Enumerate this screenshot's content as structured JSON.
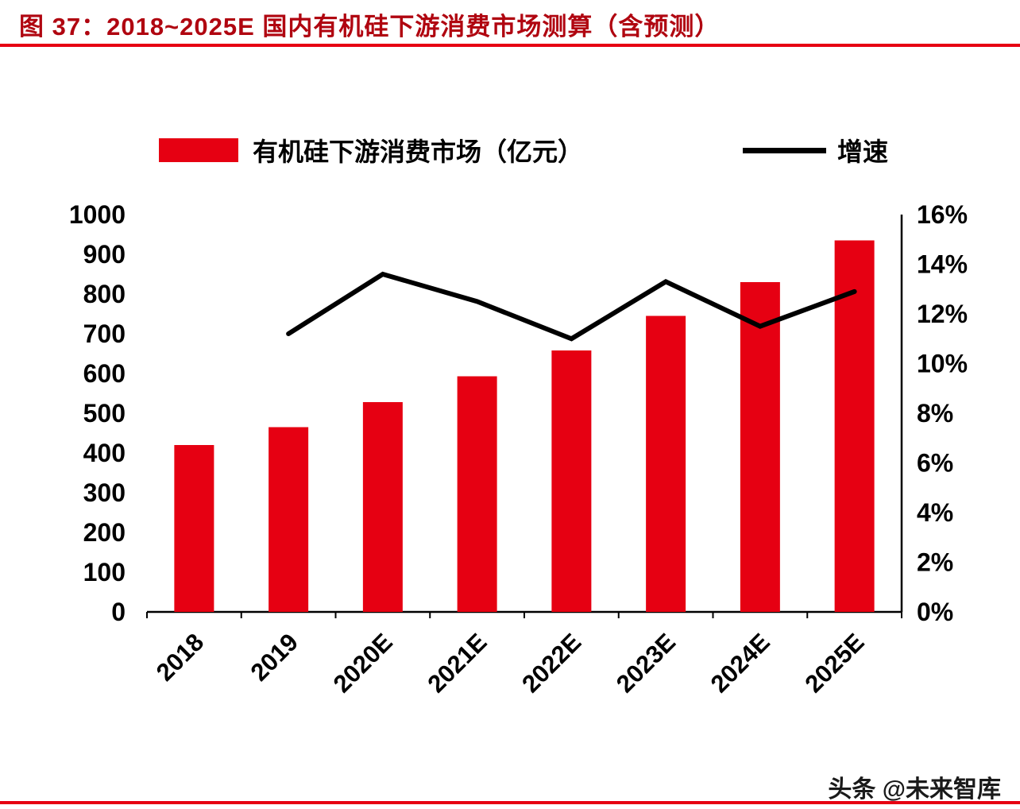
{
  "header": {
    "title": "图 37：2018~2025E 国内有机硅下游消费市场测算（含预测）",
    "title_color": "#b00510",
    "rule_color": "#e60012"
  },
  "legend": {
    "bar_label": "有机硅下游消费市场（亿元）",
    "line_label": "增速"
  },
  "footer": {
    "credit": "头条 @未来智库"
  },
  "chart_data": {
    "type": "bar+line",
    "title": "2018~2025E 国内有机硅下游消费市场测算（含预测）",
    "categories": [
      "2018",
      "2019",
      "2020E",
      "2021E",
      "2022E",
      "2023E",
      "2024E",
      "2025E"
    ],
    "series": [
      {
        "name": "有机硅下游消费市场（亿元）",
        "type": "bar",
        "axis": "left",
        "color": "#e60012",
        "values": [
          420,
          465,
          528,
          593,
          658,
          745,
          830,
          935
        ]
      },
      {
        "name": "增速",
        "type": "line",
        "axis": "right",
        "color": "#000000",
        "values": [
          null,
          11.2,
          13.6,
          12.5,
          11.0,
          13.3,
          11.5,
          12.9
        ]
      }
    ],
    "left_axis": {
      "min": 0,
      "max": 1000,
      "step": 100,
      "tick_labels": [
        "0",
        "100",
        "200",
        "300",
        "400",
        "500",
        "600",
        "700",
        "800",
        "900",
        "1000"
      ]
    },
    "right_axis": {
      "min": 0,
      "max": 16,
      "step": 2,
      "tick_labels": [
        "0%",
        "2%",
        "4%",
        "6%",
        "8%",
        "10%",
        "12%",
        "14%",
        "16%"
      ]
    },
    "grid": false,
    "legend_position": "top"
  }
}
